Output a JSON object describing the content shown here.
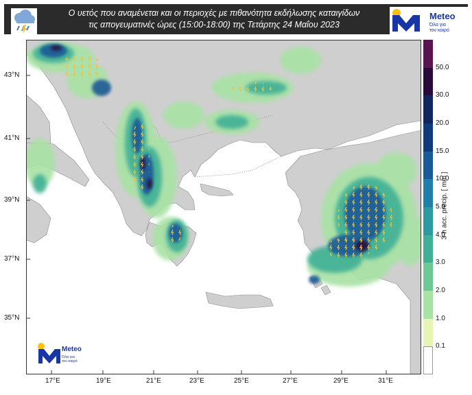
{
  "header": {
    "title_line1": "Ο υετός που αναμένεται και οι περιοχές με πιθανότητα εκδήλωσης καταιγίδων",
    "title_line2": "τις απογευματινές ώρες (15:00-18:00) της Τετάρτης 24 Μαΐου 2023",
    "weather_icon": "rain-cloud-icon"
  },
  "logo": {
    "name": "Meteo",
    "tagline_line1": "Όλα για",
    "tagline_line2": "τον καιρό"
  },
  "map": {
    "lat_ticks": [
      "43°N",
      "41°N",
      "39°N",
      "37°N",
      "35°N"
    ],
    "lon_ticks": [
      "17°E",
      "19°E",
      "21°E",
      "23°E",
      "25°E",
      "27°E",
      "29°E",
      "31°E"
    ]
  },
  "colorbar": {
    "label": "3-h acc. precip. [ mm ]",
    "ticks": [
      "50.0",
      "30.0",
      "20.0",
      "15.0",
      "10.0",
      "5.0",
      "4.0",
      "3.0",
      "2.0",
      "1.0",
      "0.1"
    ],
    "colors": [
      "#5a1550",
      "#2a0a3a",
      "#10245e",
      "#103a7a",
      "#1a5a96",
      "#1f7fa8",
      "#2a9aa0",
      "#3fb096",
      "#6cc996",
      "#a8e2a4",
      "#e6f4b4"
    ]
  }
}
